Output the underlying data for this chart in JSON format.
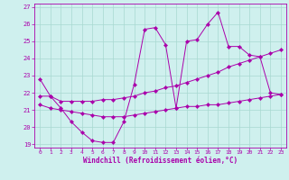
{
  "xlabel": "Windchill (Refroidissement éolien,°C)",
  "background_color": "#cff0ee",
  "grid_color": "#a8d8d0",
  "line_color": "#aa00aa",
  "xlim": [
    -0.5,
    23.5
  ],
  "ylim": [
    18.8,
    27.2
  ],
  "xticks": [
    0,
    1,
    2,
    3,
    4,
    5,
    6,
    7,
    8,
    9,
    10,
    11,
    12,
    13,
    14,
    15,
    16,
    17,
    18,
    19,
    20,
    21,
    22,
    23
  ],
  "yticks": [
    19,
    20,
    21,
    22,
    23,
    24,
    25,
    26,
    27
  ],
  "line1_x": [
    0,
    1,
    2,
    3,
    4,
    5,
    6,
    7,
    8,
    9,
    10,
    11,
    12,
    13,
    14,
    15,
    16,
    17,
    18,
    19,
    20,
    21,
    22,
    23
  ],
  "line1_y": [
    22.8,
    21.8,
    21.1,
    20.3,
    19.7,
    19.2,
    19.1,
    19.1,
    20.3,
    22.5,
    25.7,
    25.8,
    24.8,
    21.1,
    25.0,
    25.1,
    26.0,
    26.7,
    24.7,
    24.7,
    24.2,
    24.1,
    22.0,
    21.9
  ],
  "line2_x": [
    0,
    1,
    2,
    3,
    4,
    5,
    6,
    7,
    8,
    9,
    10,
    11,
    12,
    13,
    14,
    15,
    16,
    17,
    18,
    19,
    20,
    21,
    22,
    23
  ],
  "line2_y": [
    21.8,
    21.8,
    21.5,
    21.5,
    21.5,
    21.5,
    21.6,
    21.6,
    21.7,
    21.8,
    22.0,
    22.1,
    22.3,
    22.4,
    22.6,
    22.8,
    23.0,
    23.2,
    23.5,
    23.7,
    23.9,
    24.1,
    24.3,
    24.5
  ],
  "line3_x": [
    0,
    1,
    2,
    3,
    4,
    5,
    6,
    7,
    8,
    9,
    10,
    11,
    12,
    13,
    14,
    15,
    16,
    17,
    18,
    19,
    20,
    21,
    22,
    23
  ],
  "line3_y": [
    21.3,
    21.1,
    21.0,
    20.9,
    20.8,
    20.7,
    20.6,
    20.6,
    20.6,
    20.7,
    20.8,
    20.9,
    21.0,
    21.1,
    21.2,
    21.2,
    21.3,
    21.3,
    21.4,
    21.5,
    21.6,
    21.7,
    21.8,
    21.9
  ]
}
